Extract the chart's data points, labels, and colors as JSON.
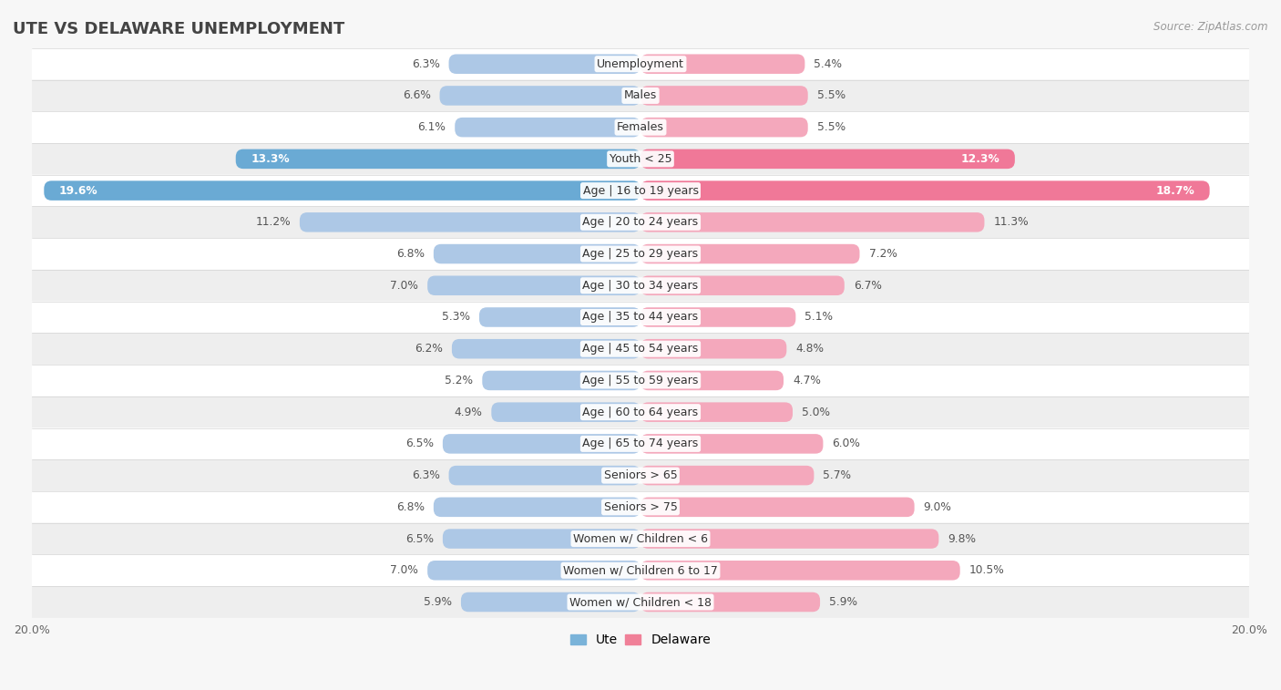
{
  "title": "UTE VS DELAWARE UNEMPLOYMENT",
  "source": "Source: ZipAtlas.com",
  "categories": [
    "Unemployment",
    "Males",
    "Females",
    "Youth < 25",
    "Age | 16 to 19 years",
    "Age | 20 to 24 years",
    "Age | 25 to 29 years",
    "Age | 30 to 34 years",
    "Age | 35 to 44 years",
    "Age | 45 to 54 years",
    "Age | 55 to 59 years",
    "Age | 60 to 64 years",
    "Age | 65 to 74 years",
    "Seniors > 65",
    "Seniors > 75",
    "Women w/ Children < 6",
    "Women w/ Children 6 to 17",
    "Women w/ Children < 18"
  ],
  "ute_values": [
    6.3,
    6.6,
    6.1,
    13.3,
    19.6,
    11.2,
    6.8,
    7.0,
    5.3,
    6.2,
    5.2,
    4.9,
    6.5,
    6.3,
    6.8,
    6.5,
    7.0,
    5.9
  ],
  "delaware_values": [
    5.4,
    5.5,
    5.5,
    12.3,
    18.7,
    11.3,
    7.2,
    6.7,
    5.1,
    4.8,
    4.7,
    5.0,
    6.0,
    5.7,
    9.0,
    9.8,
    10.5,
    5.9
  ],
  "ute_color": "#adc8e6",
  "delaware_color": "#f4a8bc",
  "ute_highlight_color": "#6aaad4",
  "delaware_highlight_color": "#f07898",
  "highlight_rows": [
    "Youth < 25",
    "Age | 16 to 19 years"
  ],
  "axis_max": 20.0,
  "bar_height": 0.62,
  "bg_color": "#f7f7f7",
  "row_bg_light": "#ffffff",
  "row_bg_dark": "#eeeeee",
  "label_fontsize": 9.0,
  "value_fontsize": 8.8,
  "title_fontsize": 13,
  "legend_ute_color": "#7ab3d9",
  "legend_delaware_color": "#f08098",
  "text_dark": "#555555",
  "text_white": "#ffffff"
}
